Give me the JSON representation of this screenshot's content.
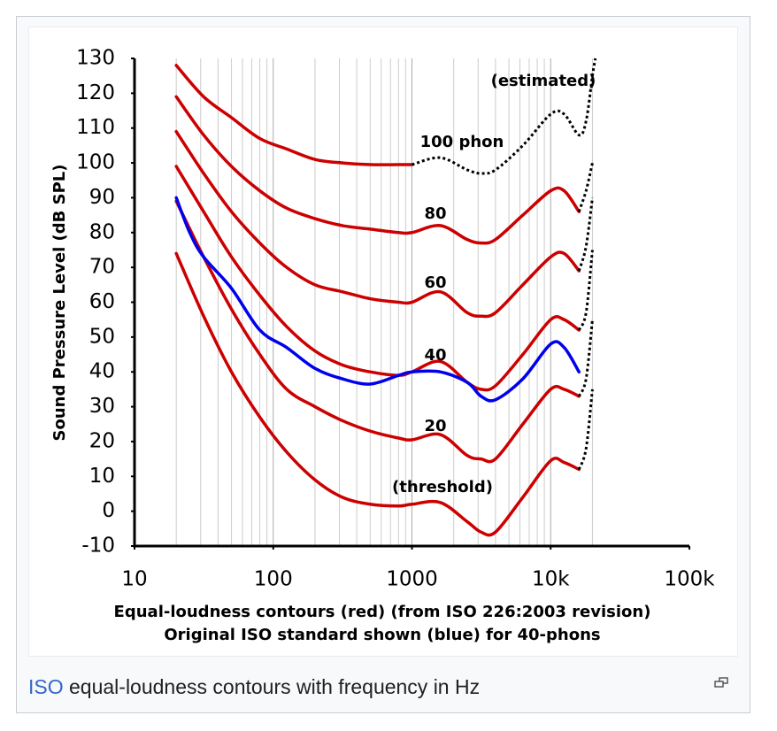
{
  "chart_data": {
    "type": "line",
    "x_scale": "log",
    "xlim": [
      10,
      100000
    ],
    "ylim": [
      -10,
      130
    ],
    "xticks": [
      10,
      100,
      1000,
      {
        "value": 10000,
        "label": "10k"
      },
      {
        "value": 100000,
        "label": "100k"
      }
    ],
    "yticks": [
      -10,
      0,
      10,
      20,
      30,
      40,
      50,
      60,
      70,
      80,
      90,
      100,
      110,
      120,
      130
    ],
    "grid": "x-minor",
    "ylabel": "Sound Pressure Level (dB SPL)",
    "xlabel": [
      "Equal-loudness contours (red) (from ISO 226:2003 revision)",
      "Original ISO standard shown (blue) for 40-phons"
    ],
    "annotations": [
      "(estimated)",
      "100 phon",
      "80",
      "60",
      "40",
      "20",
      "(threshold)"
    ],
    "series": [
      {
        "color": "#cc0000",
        "style": "solid",
        "x": [
          20,
          31.5,
          50,
          80,
          125,
          200,
          315,
          500,
          800,
          1000,
          1600,
          2500,
          3150,
          4000,
          6300,
          10000,
          12500,
          16000
        ],
        "values": [
          74,
          56,
          40,
          27,
          17,
          9,
          4,
          2,
          1.5,
          2,
          2.5,
          -3,
          -6,
          -6,
          4,
          14.5,
          14,
          12
        ]
      },
      {
        "color": "#cc0000",
        "style": "solid",
        "x": [
          20,
          31.5,
          50,
          80,
          125,
          200,
          315,
          500,
          800,
          1000,
          1600,
          2500,
          3150,
          4000,
          6300,
          10000,
          12500,
          16000
        ],
        "values": [
          89,
          73,
          58,
          45,
          35,
          30,
          26,
          23,
          21,
          20.5,
          22,
          16,
          15,
          15,
          25,
          35,
          35,
          33
        ]
      },
      {
        "color": "#cc0000",
        "style": "solid",
        "x": [
          20,
          31.5,
          50,
          80,
          125,
          200,
          315,
          500,
          800,
          1000,
          1600,
          2500,
          3150,
          4000,
          6300,
          10000,
          12500,
          16000
        ],
        "values": [
          99,
          86,
          73,
          62,
          53,
          46,
          42,
          40,
          39,
          40,
          43,
          37,
          35,
          36,
          45,
          55,
          55,
          52
        ]
      },
      {
        "color": "#cc0000",
        "style": "solid",
        "x": [
          20,
          31.5,
          50,
          80,
          125,
          200,
          315,
          500,
          800,
          1000,
          1600,
          2500,
          3150,
          4000,
          6300,
          10000,
          12500,
          16000
        ],
        "values": [
          109,
          97,
          86,
          77,
          70,
          65,
          63,
          61,
          60,
          60,
          63,
          57,
          56,
          57,
          65,
          73,
          74,
          69
        ]
      },
      {
        "color": "#cc0000",
        "style": "solid",
        "x": [
          20,
          31.5,
          50,
          80,
          125,
          200,
          315,
          500,
          800,
          1000,
          1600,
          2500,
          3150,
          4000,
          6300,
          10000,
          12500,
          16000
        ],
        "values": [
          119,
          108,
          99,
          92,
          87,
          84,
          82,
          81,
          80,
          80,
          82,
          78,
          77,
          78,
          85,
          92,
          92,
          86
        ]
      },
      {
        "color": "#cc0000",
        "style": "solid",
        "x": [
          20,
          31.5,
          50,
          80,
          125,
          200,
          315,
          500,
          800,
          1000
        ],
        "values": [
          128,
          119,
          113,
          107,
          104,
          101,
          100,
          99.5,
          99.5,
          99.5
        ]
      },
      {
        "color": "#0000ee",
        "style": "solid",
        "x": [
          20,
          25,
          31.5,
          50,
          80,
          125,
          200,
          315,
          500,
          800,
          1000,
          1600,
          2500,
          3150,
          4000,
          6300,
          10000,
          12500,
          16000
        ],
        "values": [
          90,
          80,
          73,
          64,
          52,
          47,
          41,
          38,
          36.5,
          39,
          40,
          40,
          37,
          33,
          32,
          38,
          48,
          47,
          40
        ]
      },
      {
        "color": "#000000",
        "style": "dotted",
        "x": [
          16000,
          18000,
          20000
        ],
        "values": [
          12,
          18,
          35
        ]
      },
      {
        "color": "#000000",
        "style": "dotted",
        "x": [
          16000,
          18000,
          20000
        ],
        "values": [
          33,
          38,
          55
        ]
      },
      {
        "color": "#000000",
        "style": "dotted",
        "x": [
          16000,
          18000,
          20000
        ],
        "values": [
          52,
          57,
          75
        ]
      },
      {
        "color": "#000000",
        "style": "dotted",
        "x": [
          16000,
          18000,
          20000
        ],
        "values": [
          69,
          76,
          90
        ]
      },
      {
        "color": "#000000",
        "style": "dotted",
        "x": [
          16000,
          18000,
          20000
        ],
        "values": [
          86,
          92,
          100
        ]
      },
      {
        "color": "#000000",
        "style": "dotted",
        "x": [
          1000,
          1600,
          2500,
          3150,
          4000,
          6300,
          10000,
          12500,
          16000,
          18000,
          20000,
          21000
        ],
        "values": [
          99.5,
          101.5,
          98,
          97,
          98,
          105,
          114,
          114,
          108,
          112,
          125,
          130
        ]
      }
    ]
  },
  "caption": {
    "link": "ISO",
    "text": "equal-loudness contours with frequency in Hz"
  }
}
